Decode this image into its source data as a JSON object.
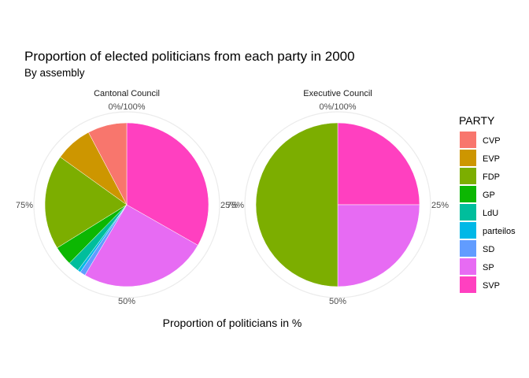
{
  "chart_data": {
    "type": "pie",
    "title": "Proportion of elected politicians from each party in 2000",
    "subtitle": "By assembly",
    "xlabel": "Proportion of politicians in %",
    "ylabel": "",
    "legend": {
      "title": "PARTY",
      "position": "right"
    },
    "grid": true,
    "angular_ticks": [
      "0%/100%",
      "25%",
      "50%",
      "75%"
    ],
    "categories": [
      "CVP",
      "EVP",
      "FDP",
      "GP",
      "LdU",
      "parteilos",
      "SD",
      "SP",
      "SVP"
    ],
    "colors": {
      "CVP": "#F8766D",
      "EVP": "#CD9600",
      "FDP": "#7CAE00",
      "GP": "#0CB702",
      "LdU": "#00BE9C",
      "parteilos": "#00B8E7",
      "SD": "#619CFF",
      "SP": "#E76BF3",
      "SVP": "#FF40C0"
    },
    "facets": [
      {
        "name": "Cantonal Council",
        "values": {
          "SVP": 33.9,
          "SP": 25.8,
          "SD": 1.1,
          "parteilos": 0.6,
          "LdU": 2.2,
          "GP": 3.9,
          "FDP": 19.1,
          "EVP": 7.5,
          "CVP": 7.9
        }
      },
      {
        "name": "Executive Council",
        "values": {
          "SVP": 25.0,
          "SP": 25.0,
          "SD": 0,
          "parteilos": 0,
          "LdU": 0,
          "GP": 0,
          "FDP": 50.0,
          "EVP": 0,
          "CVP": 0
        }
      }
    ]
  }
}
